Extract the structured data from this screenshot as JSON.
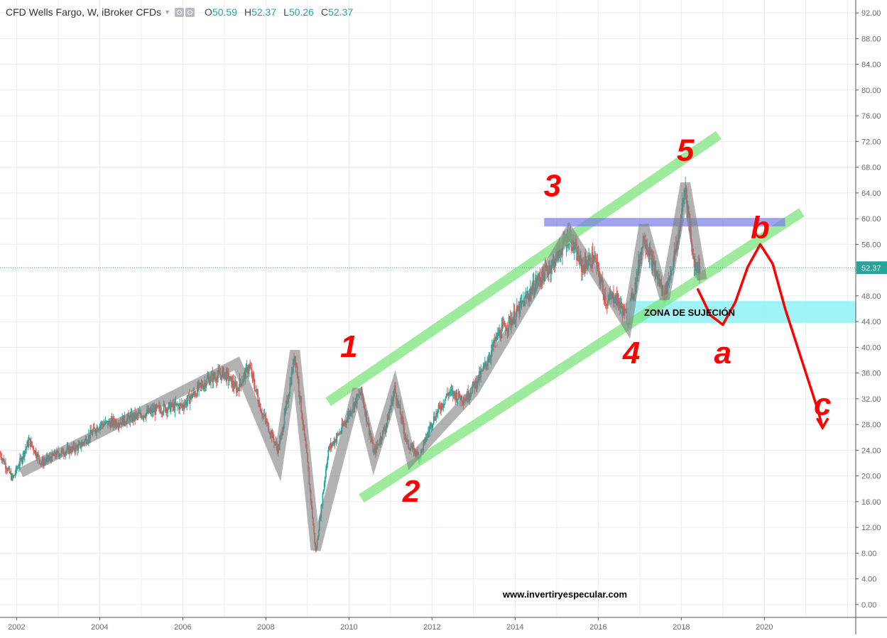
{
  "legend": {
    "symbol": "CFD Wells Fargo, W, iBroker CFDs",
    "o_label": "O",
    "o_value": "50.59",
    "h_label": "H",
    "h_value": "52.37",
    "l_label": "L",
    "l_value": "50.26",
    "c_label": "C",
    "c_value": "52.37"
  },
  "colors": {
    "up": "#26a69a",
    "down": "#ef5350",
    "grid": "#e9ecf1",
    "axis_text": "#6b6b6b",
    "price_tag": "#26a69a",
    "trend_gray": "#7f7f7f",
    "channel_green": "#7ee57e",
    "resistance_blue": "#7b7bea",
    "support_zone": "#8ff2f5",
    "handwriting_red": "#ff0000"
  },
  "chart_data": {
    "type": "candlestick",
    "title": "CFD Wells Fargo, W, iBroker CFDs",
    "timeframe": "W",
    "last_price": 52.37,
    "ohlc_last": {
      "open": 50.59,
      "high": 52.37,
      "low": 50.26,
      "close": 52.37
    },
    "x_range": [
      2001.6,
      2022.2
    ],
    "ylim": [
      -2.0,
      94.0
    ],
    "x_ticks": [
      2002,
      2004,
      2006,
      2008,
      2010,
      2012,
      2014,
      2016,
      2018,
      2020
    ],
    "x_tick_labels": [
      "2002",
      "2004",
      "2006",
      "2008",
      "2010",
      "2012",
      "2014",
      "2016",
      "2018",
      "2020"
    ],
    "y_ticks": [
      0,
      4,
      8,
      12,
      16,
      20,
      24,
      28,
      32,
      36,
      40,
      44,
      48,
      52,
      56,
      60,
      64,
      68,
      72,
      76,
      80,
      84,
      88,
      92
    ],
    "y_tick_labels": [
      "0.00",
      "4.00",
      "8.00",
      "12.00",
      "16.00",
      "20.00",
      "24.00",
      "28.00",
      "32.00",
      "36.00",
      "40.00",
      "44.00",
      "48.00",
      "52.00",
      "56.00",
      "60.00",
      "64.00",
      "68.00",
      "72.00",
      "76.00",
      "80.00",
      "84.00",
      "88.00",
      "92.00"
    ],
    "price_path": [
      [
        2001.6,
        23.5
      ],
      [
        2001.9,
        19.5
      ],
      [
        2002.3,
        25.5
      ],
      [
        2002.6,
        22.0
      ],
      [
        2003.0,
        23.5
      ],
      [
        2003.5,
        24.5
      ],
      [
        2004.0,
        28.0
      ],
      [
        2004.5,
        28.5
      ],
      [
        2005.0,
        29.5
      ],
      [
        2005.5,
        30.5
      ],
      [
        2006.0,
        31.0
      ],
      [
        2006.6,
        35.0
      ],
      [
        2007.0,
        36.0
      ],
      [
        2007.3,
        33.5
      ],
      [
        2007.6,
        37.0
      ],
      [
        2007.9,
        30.0
      ],
      [
        2008.3,
        24.0
      ],
      [
        2008.5,
        31.0
      ],
      [
        2008.7,
        39.0
      ],
      [
        2009.0,
        22.0
      ],
      [
        2009.2,
        8.0
      ],
      [
        2009.5,
        24.0
      ],
      [
        2009.8,
        27.0
      ],
      [
        2010.1,
        31.0
      ],
      [
        2010.3,
        33.0
      ],
      [
        2010.6,
        23.5
      ],
      [
        2010.9,
        28.0
      ],
      [
        2011.1,
        33.5
      ],
      [
        2011.4,
        25.0
      ],
      [
        2011.7,
        23.0
      ],
      [
        2012.0,
        28.5
      ],
      [
        2012.4,
        33.0
      ],
      [
        2012.8,
        32.0
      ],
      [
        2013.2,
        36.0
      ],
      [
        2013.6,
        42.0
      ],
      [
        2014.0,
        45.0
      ],
      [
        2014.5,
        50.0
      ],
      [
        2014.9,
        53.0
      ],
      [
        2015.3,
        57.5
      ],
      [
        2015.6,
        52.5
      ],
      [
        2015.9,
        54.0
      ],
      [
        2016.2,
        47.0
      ],
      [
        2016.4,
        48.0
      ],
      [
        2016.7,
        44.5
      ],
      [
        2016.9,
        50.0
      ],
      [
        2017.1,
        57.5
      ],
      [
        2017.3,
        53.0
      ],
      [
        2017.6,
        48.0
      ],
      [
        2017.9,
        56.0
      ],
      [
        2018.1,
        65.0
      ],
      [
        2018.3,
        53.0
      ],
      [
        2018.45,
        52.37
      ]
    ],
    "annotations": {
      "wave_labels": [
        "1",
        "2",
        "3",
        "4",
        "5",
        "a",
        "b",
        "c"
      ],
      "zone_label": "ZONA DE SUJECIÓN",
      "watermark": "www.invertiryespecular.com",
      "gray_zigzag": [
        [
          2002.1,
          20.5
        ],
        [
          2007.3,
          37.5
        ],
        [
          2008.3,
          22.0
        ],
        [
          2008.7,
          39.5
        ],
        [
          2009.2,
          8.5
        ],
        [
          2010.2,
          33.5
        ],
        [
          2010.6,
          23.0
        ],
        [
          2011.1,
          33.5
        ],
        [
          2011.5,
          22.5
        ],
        [
          2013.0,
          33.0
        ],
        [
          2015.3,
          58.0
        ],
        [
          2016.7,
          43.5
        ],
        [
          2017.1,
          59.0
        ],
        [
          2017.6,
          47.5
        ],
        [
          2018.1,
          65.5
        ],
        [
          2018.5,
          50.5
        ]
      ],
      "channel_upper": [
        [
          2009.5,
          31.5
        ],
        [
          2018.9,
          73.0
        ]
      ],
      "channel_lower": [
        [
          2010.3,
          16.5
        ],
        [
          2020.9,
          61.0
        ]
      ],
      "resistance_zone": {
        "x": [
          2014.7,
          2020.5
        ],
        "y": [
          58.8,
          60.1
        ]
      },
      "support_zone": {
        "x_start": 2016.7,
        "y": [
          43.8,
          47.2
        ]
      },
      "red_path_a": [
        [
          2018.4,
          49.0
        ],
        [
          2018.7,
          45.0
        ],
        [
          2019.0,
          43.5
        ],
        [
          2019.3,
          47.0
        ],
        [
          2019.6,
          52.5
        ],
        [
          2019.9,
          56.0
        ],
        [
          2020.2,
          53.0
        ],
        [
          2020.5,
          46.0
        ],
        [
          2020.9,
          38.0
        ],
        [
          2021.3,
          30.0
        ],
        [
          2021.4,
          27.5
        ]
      ]
    }
  }
}
